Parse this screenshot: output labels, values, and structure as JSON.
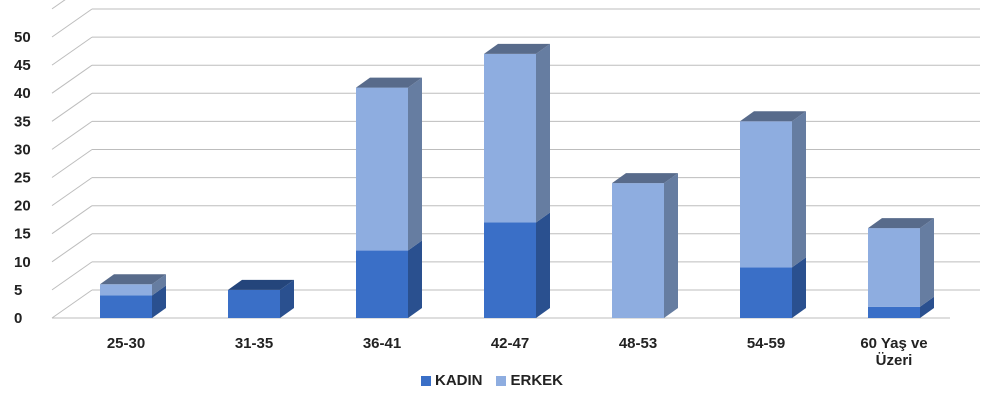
{
  "chart_data": {
    "type": "bar",
    "stacked": true,
    "style": "3d-column",
    "categories": [
      "25-30",
      "31-35",
      "36-41",
      "42-47",
      "48-53",
      "54-59",
      "60 Yaş ve Üzeri"
    ],
    "category_lines": [
      [
        "25-30"
      ],
      [
        "31-35"
      ],
      [
        "36-41"
      ],
      [
        "42-47"
      ],
      [
        "48-53"
      ],
      [
        "54-59"
      ],
      [
        "60 Yaş ve",
        "Üzeri"
      ]
    ],
    "series": [
      {
        "name": "KADIN",
        "values": [
          4,
          5,
          12,
          17,
          0,
          9,
          2
        ],
        "color": "#3a6fc7"
      },
      {
        "name": "ERKEK",
        "values": [
          2,
          0,
          29,
          30,
          24,
          26,
          14
        ],
        "color": "#8eade0"
      }
    ],
    "yticks": [
      0,
      5,
      10,
      15,
      20,
      25,
      30,
      35,
      40,
      45,
      50
    ],
    "ylim": [
      0,
      50
    ],
    "grid": true,
    "legend_position": "bottom",
    "title": "",
    "xlabel": "",
    "ylabel": ""
  }
}
